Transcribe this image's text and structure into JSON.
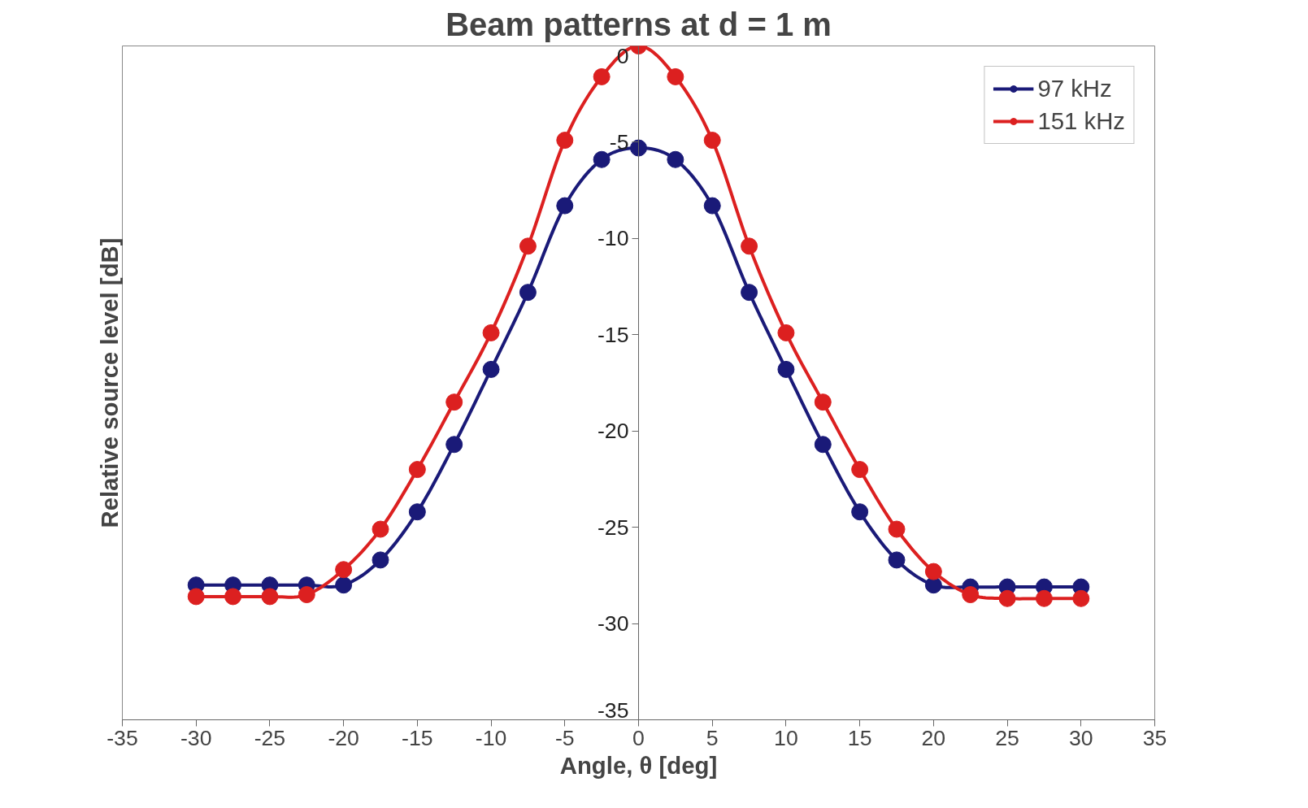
{
  "chart_data": {
    "type": "line",
    "title": "Beam patterns at d = 1 m",
    "xlabel": "Angle, θ [deg]",
    "ylabel": "Relative source level [dB]",
    "x": [
      -30,
      -27.5,
      -25,
      -22.5,
      -20,
      -17.5,
      -15,
      -12.5,
      -10,
      -7.5,
      -5,
      -2.5,
      0,
      2.5,
      5,
      7.5,
      10,
      12.5,
      15,
      17.5,
      20,
      22.5,
      25,
      27.5,
      30
    ],
    "series": [
      {
        "name": "97 kHz",
        "color": "#1a1a78",
        "values": [
          -28.0,
          -28.0,
          -28.0,
          -28.0,
          -28.0,
          -26.7,
          -24.2,
          -20.7,
          -16.8,
          -12.8,
          -8.3,
          -5.9,
          -5.3,
          -5.9,
          -8.3,
          -12.8,
          -16.8,
          -20.7,
          -24.2,
          -26.7,
          -28.0,
          -28.1,
          -28.1,
          -28.1,
          -28.1
        ]
      },
      {
        "name": "151 kHz",
        "color": "#dc2020",
        "values": [
          -28.6,
          -28.6,
          -28.6,
          -28.5,
          -27.2,
          -25.1,
          -22.0,
          -18.5,
          -14.9,
          -10.4,
          -4.9,
          -1.6,
          0,
          -1.6,
          -4.9,
          -10.4,
          -14.9,
          -18.5,
          -22.0,
          -25.1,
          -27.3,
          -28.5,
          -28.7,
          -28.7,
          -28.7
        ]
      }
    ],
    "xlim": [
      -35,
      35
    ],
    "xticks": [
      -35,
      -30,
      -25,
      -20,
      -15,
      -10,
      -5,
      0,
      5,
      10,
      15,
      20,
      25,
      30,
      35
    ],
    "ylim": [
      -35,
      0
    ],
    "yticks": [
      -35,
      -30,
      -25,
      -20,
      -15,
      -10,
      -5,
      0
    ],
    "grid": false,
    "legend": "top right",
    "marker": "circle",
    "line_style": "solid"
  }
}
